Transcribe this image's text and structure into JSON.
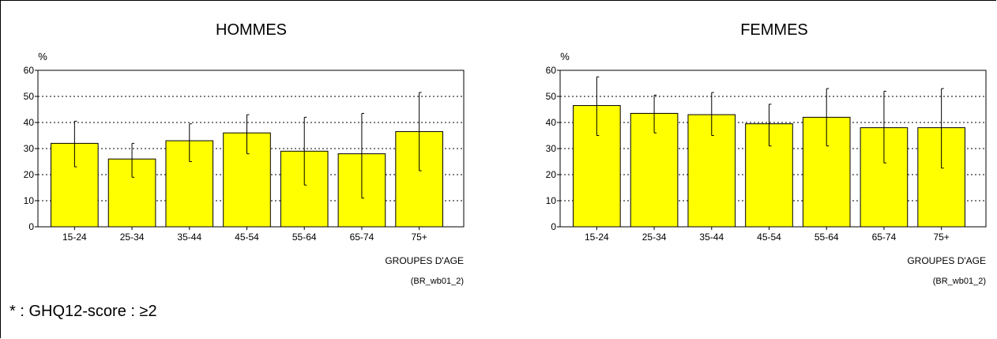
{
  "footnote": "* : GHQ12-score : ≥2",
  "colors": {
    "bar_fill": "#ffff00",
    "bar_stroke": "#000000",
    "grid": "#000000"
  },
  "chart_data": [
    {
      "type": "bar",
      "title": "HOMMES",
      "ylabel": "%",
      "xlabel": "GROUPES D'AGE",
      "source": "(BR_wb01_2)",
      "ylim": [
        0,
        60
      ],
      "yticks": [
        0,
        10,
        20,
        30,
        40,
        50,
        60
      ],
      "grid": true,
      "categories": [
        "15-24",
        "25-34",
        "35-44",
        "45-54",
        "55-64",
        "65-74",
        "75+"
      ],
      "values": [
        32,
        26,
        33,
        36,
        29,
        28,
        36.5
      ],
      "error_low": [
        23,
        19,
        25,
        28,
        16,
        11,
        21.5
      ],
      "error_high": [
        40.5,
        32,
        39.5,
        43,
        42,
        43.5,
        51.5
      ]
    },
    {
      "type": "bar",
      "title": "FEMMES",
      "ylabel": "%",
      "xlabel": "GROUPES D'AGE",
      "source": "(BR_wb01_2)",
      "ylim": [
        0,
        60
      ],
      "yticks": [
        0,
        10,
        20,
        30,
        40,
        50,
        60
      ],
      "grid": true,
      "categories": [
        "15-24",
        "25-34",
        "35-44",
        "45-54",
        "55-64",
        "65-74",
        "75+"
      ],
      "values": [
        46.5,
        43.5,
        43,
        39.5,
        42,
        38,
        38
      ],
      "error_low": [
        35,
        36,
        35,
        31,
        31,
        24.5,
        22.5
      ],
      "error_high": [
        57.5,
        50.5,
        51.5,
        47,
        53,
        52,
        53
      ]
    }
  ]
}
